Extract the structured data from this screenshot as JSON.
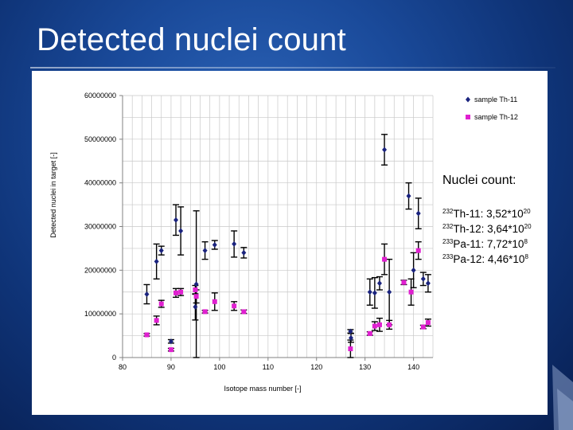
{
  "slide": {
    "title": "Detected nuclei count"
  },
  "info": {
    "title": "Nuclei count:",
    "lines": [
      {
        "sup": "232",
        "text": "Th-11: 3,52*10",
        "exp": "20"
      },
      {
        "sup": "232",
        "text": "Th-12: 3,64*10",
        "exp": "20"
      },
      {
        "sup": "233",
        "text": "Pa-11: 7,72*10",
        "exp": "8"
      },
      {
        "sup": "233",
        "text": "Pa-12: 4,46*10",
        "exp": "8"
      }
    ]
  },
  "chart_data": {
    "type": "scatter",
    "xlabel": "Isotope mass number [-]",
    "ylabel": "Detected nuclei in target [-]",
    "xlim": [
      80,
      144
    ],
    "ylim": [
      0,
      60000000
    ],
    "xticks": [
      80,
      90,
      100,
      110,
      120,
      130,
      140
    ],
    "yticks": [
      0,
      10000000,
      20000000,
      30000000,
      40000000,
      50000000,
      60000000
    ],
    "grid": true,
    "legend_position": "top-right",
    "series": [
      {
        "name": "sample Th-11",
        "color": "#1a237e",
        "marker": "diamond",
        "points": [
          {
            "x": 85,
            "y": 14500000,
            "err": 2200000
          },
          {
            "x": 87,
            "y": 22000000,
            "err": 4000000
          },
          {
            "x": 88,
            "y": 24500000,
            "err": 1000000
          },
          {
            "x": 90,
            "y": 3700000,
            "err": 400000
          },
          {
            "x": 91,
            "y": 31500000,
            "err": 3500000
          },
          {
            "x": 92,
            "y": 29000000,
            "err": 5500000
          },
          {
            "x": 95,
            "y": 11600000,
            "err": 3000000
          },
          {
            "x": 95.2,
            "y": 16800000,
            "err": 16800000
          },
          {
            "x": 97,
            "y": 24500000,
            "err": 2000000
          },
          {
            "x": 99,
            "y": 25800000,
            "err": 1000000
          },
          {
            "x": 103,
            "y": 26000000,
            "err": 3000000
          },
          {
            "x": 105,
            "y": 24000000,
            "err": 1200000
          },
          {
            "x": 127,
            "y": 6000000,
            "err": 400000
          },
          {
            "x": 127.1,
            "y": 4500000,
            "err": 1000000
          },
          {
            "x": 131,
            "y": 15000000,
            "err": 3000000
          },
          {
            "x": 132,
            "y": 14800000,
            "err": 3500000
          },
          {
            "x": 133,
            "y": 17000000,
            "err": 1500000
          },
          {
            "x": 134,
            "y": 47600000,
            "err": 3500000
          },
          {
            "x": 135,
            "y": 15000000,
            "err": 7500000
          },
          {
            "x": 139,
            "y": 37000000,
            "err": 3000000
          },
          {
            "x": 140,
            "y": 20000000,
            "err": 4000000
          },
          {
            "x": 141,
            "y": 33000000,
            "err": 3500000
          },
          {
            "x": 142,
            "y": 18000000,
            "err": 1500000
          },
          {
            "x": 143,
            "y": 17000000,
            "err": 2000000
          }
        ]
      },
      {
        "name": "sample Th-12",
        "color": "#e020d0",
        "marker": "square",
        "points": [
          {
            "x": 85,
            "y": 5200000,
            "err": 300000
          },
          {
            "x": 87,
            "y": 8500000,
            "err": 1000000
          },
          {
            "x": 88,
            "y": 12300000,
            "err": 800000
          },
          {
            "x": 90,
            "y": 1800000,
            "err": 300000
          },
          {
            "x": 91,
            "y": 14800000,
            "err": 1000000
          },
          {
            "x": 92,
            "y": 15000000,
            "err": 800000
          },
          {
            "x": 95,
            "y": 15500000,
            "err": 1000000
          },
          {
            "x": 95.2,
            "y": 14000000,
            "err": 1500000
          },
          {
            "x": 97,
            "y": 10500000,
            "err": 300000
          },
          {
            "x": 99,
            "y": 12800000,
            "err": 2000000
          },
          {
            "x": 103,
            "y": 11800000,
            "err": 1000000
          },
          {
            "x": 105,
            "y": 10500000,
            "err": 400000
          },
          {
            "x": 127,
            "y": 2000000,
            "err": 2000000
          },
          {
            "x": 131,
            "y": 5500000,
            "err": 400000
          },
          {
            "x": 132,
            "y": 7200000,
            "err": 1000000
          },
          {
            "x": 133,
            "y": 7500000,
            "err": 1500000
          },
          {
            "x": 134,
            "y": 22500000,
            "err": 3500000
          },
          {
            "x": 135,
            "y": 7500000,
            "err": 1000000
          },
          {
            "x": 138,
            "y": 17200000,
            "err": 500000
          },
          {
            "x": 139.5,
            "y": 15000000,
            "err": 3000000
          },
          {
            "x": 141,
            "y": 24500000,
            "err": 2000000
          },
          {
            "x": 142,
            "y": 7000000,
            "err": 400000
          },
          {
            "x": 143,
            "y": 8000000,
            "err": 800000
          }
        ]
      }
    ]
  }
}
